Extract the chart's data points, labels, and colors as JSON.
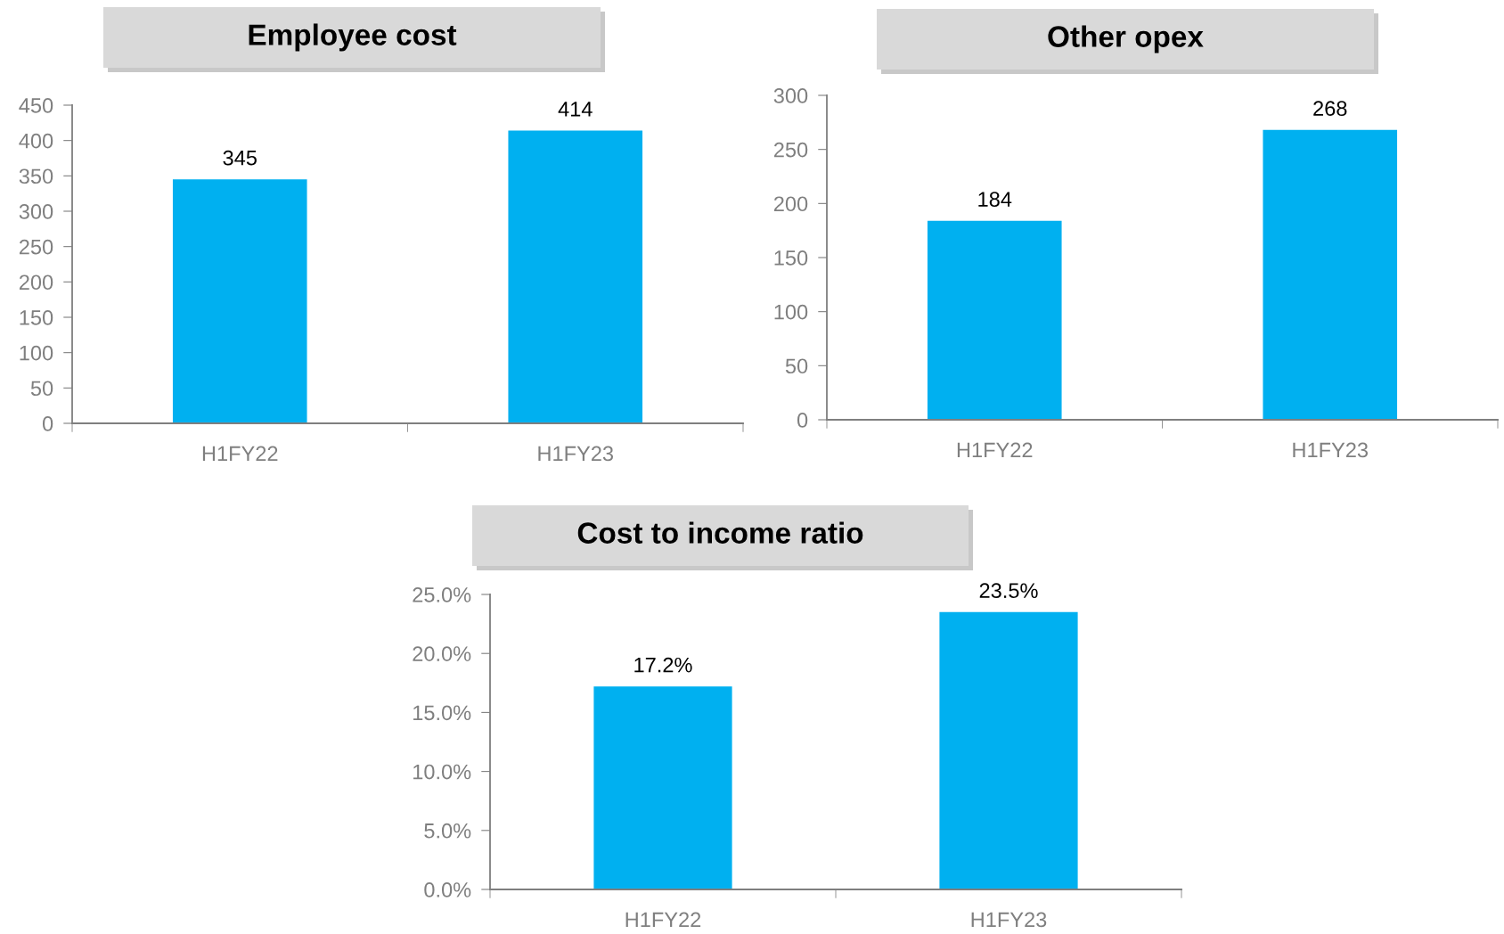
{
  "chart_data": [
    {
      "type": "bar",
      "title": "Employee cost",
      "categories": [
        "H1FY22",
        "H1FY23"
      ],
      "values": [
        345,
        414
      ],
      "color": "#00b0f0",
      "ylim": [
        0,
        450
      ],
      "yticks": [
        0,
        50,
        100,
        150,
        200,
        250,
        300,
        350,
        400,
        450
      ],
      "data_labels": true,
      "grid": false,
      "legend": false
    },
    {
      "type": "bar",
      "title": "Other opex",
      "categories": [
        "H1FY22",
        "H1FY23"
      ],
      "values": [
        184,
        268
      ],
      "color": "#00b0f0",
      "ylim": [
        0,
        300
      ],
      "yticks": [
        0,
        50,
        100,
        150,
        200,
        250,
        300
      ],
      "data_labels": true,
      "grid": false,
      "legend": false
    },
    {
      "type": "bar",
      "title": "Cost to income ratio",
      "categories": [
        "H1FY22",
        "H1FY23"
      ],
      "values": [
        17.2,
        23.5
      ],
      "value_labels": [
        "17.2%",
        "23.5%"
      ],
      "color": "#00b0f0",
      "ylim": [
        0,
        25
      ],
      "yticks": [
        {
          "value": 0,
          "label": "0.0%"
        },
        {
          "value": 5,
          "label": "5.0%"
        },
        {
          "value": 10,
          "label": "10.0%"
        },
        {
          "value": 15,
          "label": "15.0%"
        },
        {
          "value": 20,
          "label": "20.0%"
        },
        {
          "value": 25,
          "label": "25.0%"
        }
      ],
      "grid": false,
      "legend": false
    }
  ]
}
